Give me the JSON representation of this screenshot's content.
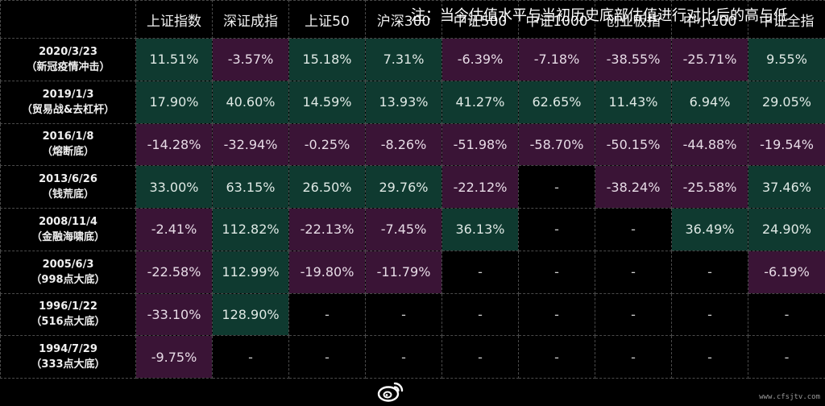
{
  "table": {
    "corner": "",
    "headers": [
      "上证指数",
      "深证成指",
      "上证50",
      "沪深300",
      "中证500",
      "中证1000",
      "创业板指",
      "中小100",
      "中证全指"
    ],
    "rows": [
      {
        "date": "2020/3/23",
        "note": "（新冠疫情冲击）",
        "values": [
          "11.51%",
          "-3.57%",
          "15.18%",
          "7.31%",
          "-6.39%",
          "-7.18%",
          "-38.55%",
          "-25.71%",
          "9.55%"
        ]
      },
      {
        "date": "2019/1/3",
        "note": "（贸易战&去杠杆）",
        "values": [
          "17.90%",
          "40.60%",
          "14.59%",
          "13.93%",
          "41.27%",
          "62.65%",
          "11.43%",
          "6.94%",
          "29.05%"
        ]
      },
      {
        "date": "2016/1/8",
        "note": "（熔断底）",
        "values": [
          "-14.28%",
          "-32.94%",
          "-0.25%",
          "-8.26%",
          "-51.98%",
          "-58.70%",
          "-50.15%",
          "-44.88%",
          "-19.54%"
        ]
      },
      {
        "date": "2013/6/26",
        "note": "（钱荒底）",
        "values": [
          "33.00%",
          "63.15%",
          "26.50%",
          "29.76%",
          "-22.12%",
          "-",
          "-38.24%",
          "-25.58%",
          "37.46%"
        ]
      },
      {
        "date": "2008/11/4",
        "note": "（金融海啸底）",
        "values": [
          "-2.41%",
          "112.82%",
          "-22.13%",
          "-7.45%",
          "36.13%",
          "-",
          "-",
          "36.49%",
          "24.90%"
        ]
      },
      {
        "date": "2005/6/3",
        "note": "（998点大底）",
        "values": [
          "-22.58%",
          "112.99%",
          "-19.80%",
          "-11.79%",
          "-",
          "-",
          "-",
          "-",
          "-6.19%"
        ]
      },
      {
        "date": "1996/1/22",
        "note": "（516点大底）",
        "values": [
          "-33.10%",
          "128.90%",
          "-",
          "-",
          "-",
          "-",
          "-",
          "-",
          "-"
        ]
      },
      {
        "date": "1994/7/29",
        "note": "（333点大底）",
        "values": [
          "-9.75%",
          "-",
          "-",
          "-",
          "-",
          "-",
          "-",
          "-",
          "-"
        ]
      }
    ]
  },
  "colors": {
    "positive_bg": "#0f3a30",
    "negative_bg": "#3a1436",
    "empty_bg": "#000000"
  },
  "footer": {
    "caption": "注：当今估值水平与当初历史底部估值进行对比后的高与低",
    "watermark": "www.cfsjtv.com",
    "icon": "weibo-icon"
  }
}
